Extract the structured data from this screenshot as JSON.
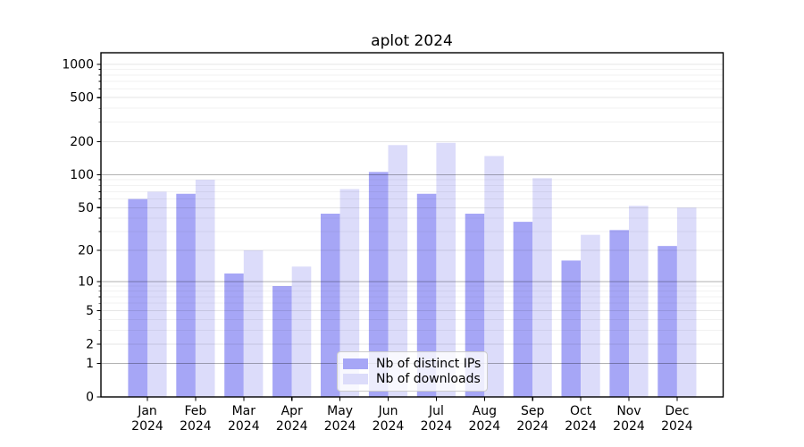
{
  "title": "aplot 2024",
  "chart_data": {
    "type": "bar",
    "title": "aplot 2024",
    "categories": [
      "Jan",
      "Feb",
      "Mar",
      "Apr",
      "May",
      "Jun",
      "Jul",
      "Aug",
      "Sep",
      "Oct",
      "Nov",
      "Dec"
    ],
    "category_year": "2024",
    "series": [
      {
        "name": "Nb of distinct IPs",
        "color": "#a6a6f6",
        "values": [
          60,
          67,
          12,
          9,
          44,
          106,
          67,
          44,
          37,
          16,
          31,
          22
        ]
      },
      {
        "name": "Nb of downloads",
        "color": "#dcdcfa",
        "values": [
          70,
          90,
          20,
          14,
          74,
          186,
          195,
          148,
          93,
          28,
          52,
          50
        ]
      }
    ],
    "y_scale": "log1p",
    "y_ticks": [
      0,
      1,
      2,
      5,
      10,
      20,
      50,
      100,
      200,
      500,
      1000
    ],
    "y_major_gridlines": [
      1,
      10,
      100
    ],
    "y_minor_gridlines": [
      3,
      4,
      6,
      7,
      8,
      9,
      30,
      40,
      60,
      70,
      80,
      90,
      300,
      400,
      600,
      700,
      800,
      900
    ],
    "ylim": [
      0,
      1270
    ],
    "grid": true,
    "legend_position": "lower center",
    "colors": {
      "axis": "#000000",
      "tick_label": "#000000",
      "grid_major": "rgba(0,0,0,0.30)",
      "grid_labeled": "rgba(0,0,0,0.10)",
      "grid_minor": "rgba(0,0,0,0.05)",
      "background": "#ffffff"
    }
  }
}
